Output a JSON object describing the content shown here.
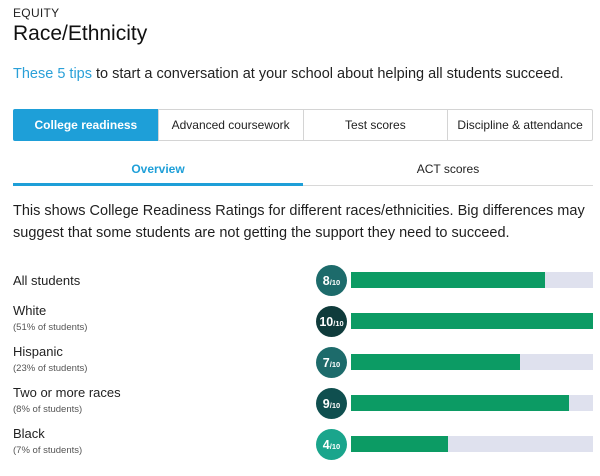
{
  "header": {
    "eyebrow": "EQUITY",
    "title": "Race/Ethnicity"
  },
  "tips": {
    "link_text": "These 5 tips",
    "rest": " to start a conversation at your school about helping all students succeed."
  },
  "tabs": [
    {
      "label": "College readiness",
      "active": true
    },
    {
      "label": "Advanced coursework",
      "active": false
    },
    {
      "label": "Test scores",
      "active": false
    },
    {
      "label": "Discipline & attendance",
      "active": false
    }
  ],
  "subtabs": [
    {
      "label": "Overview",
      "active": true
    },
    {
      "label": "ACT scores",
      "active": false
    }
  ],
  "description": "This shows College Readiness Ratings for different races/ethnicities. Big differences may suggest that some students are not getting the support they need to succeed.",
  "ratings": [
    {
      "group": "All students",
      "share": "",
      "score": "8",
      "out_of": "/10",
      "value": 8,
      "color": "#1d6b6b"
    },
    {
      "group": "White",
      "share": "(51% of students)",
      "score": "10",
      "out_of": "/10",
      "value": 10,
      "color": "#0f3b3b"
    },
    {
      "group": "Hispanic",
      "share": "(23% of students)",
      "score": "7",
      "out_of": "/10",
      "value": 7,
      "color": "#1d6b6b"
    },
    {
      "group": "Two or more races",
      "share": "(8% of students)",
      "score": "9",
      "out_of": "/10",
      "value": 9,
      "color": "#0f4f4f"
    },
    {
      "group": "Black",
      "share": "(7% of students)",
      "score": "4",
      "out_of": "/10",
      "value": 4,
      "color": "#1aa58c"
    }
  ],
  "colors": {
    "accent": "#1e9fd8",
    "bar_fill": "#0c9b64",
    "bar_track": "#dfe1ee"
  }
}
